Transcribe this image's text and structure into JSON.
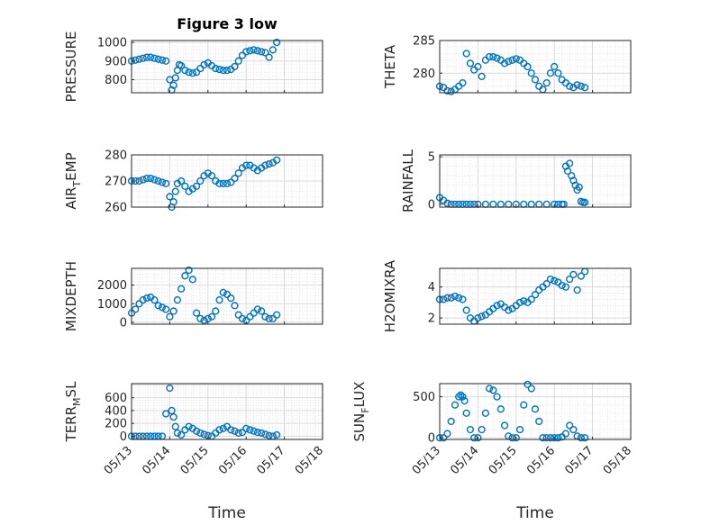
{
  "figure_title": "Figure 3 low",
  "x_label": "Time",
  "x_tick_labels": [
    "05/13",
    "05/14",
    "05/15",
    "05/16",
    "05/17",
    "05/18"
  ],
  "marker_color": "#0072BD",
  "chart_data": [
    {
      "type": "scatter",
      "id": "pressure",
      "ylabel": "PRESSURE",
      "ylabel_sub": "",
      "ylabel_suffix": "",
      "ylim": [
        730,
        1010
      ],
      "yticks": [
        800,
        900,
        1000
      ],
      "yticklabels": [
        "800",
        "900",
        "1000"
      ],
      "xlim": [
        0,
        5
      ],
      "grid": true,
      "x": [
        0.0,
        0.1,
        0.2,
        0.3,
        0.4,
        0.5,
        0.6,
        0.7,
        0.8,
        0.9,
        1.0,
        1.05,
        1.1,
        1.15,
        1.2,
        1.25,
        1.3,
        1.4,
        1.5,
        1.6,
        1.7,
        1.8,
        1.9,
        2.0,
        2.1,
        2.2,
        2.3,
        2.4,
        2.5,
        2.6,
        2.7,
        2.8,
        2.9,
        3.0,
        3.1,
        3.2,
        3.3,
        3.4,
        3.5,
        3.6,
        3.7,
        3.8
      ],
      "y": [
        900,
        905,
        910,
        915,
        920,
        920,
        915,
        910,
        905,
        900,
        800,
        745,
        770,
        810,
        850,
        880,
        875,
        850,
        840,
        835,
        840,
        860,
        880,
        890,
        875,
        860,
        855,
        850,
        850,
        855,
        870,
        900,
        930,
        950,
        955,
        960,
        955,
        950,
        945,
        920,
        960,
        1000
      ]
    },
    {
      "type": "scatter",
      "id": "theta",
      "ylabel": "THETA",
      "ylabel_sub": "",
      "ylabel_suffix": "",
      "ylim": [
        277,
        285
      ],
      "yticks": [
        280,
        285
      ],
      "yticklabels": [
        "280",
        "285"
      ],
      "xlim": [
        0,
        5
      ],
      "grid": true,
      "x": [
        0.0,
        0.1,
        0.2,
        0.3,
        0.4,
        0.5,
        0.6,
        0.7,
        0.8,
        0.9,
        1.0,
        1.1,
        1.2,
        1.3,
        1.4,
        1.5,
        1.6,
        1.7,
        1.8,
        1.9,
        2.0,
        2.1,
        2.2,
        2.3,
        2.4,
        2.5,
        2.6,
        2.7,
        2.8,
        2.9,
        3.0,
        3.1,
        3.2,
        3.3,
        3.4,
        3.5,
        3.6,
        3.7,
        3.8
      ],
      "y": [
        278.0,
        277.8,
        277.3,
        277.2,
        277.5,
        278.0,
        278.5,
        283.0,
        281.5,
        280.5,
        281.0,
        279.5,
        282.0,
        282.5,
        282.5,
        282.3,
        282.0,
        281.5,
        281.8,
        282.0,
        282.2,
        282.0,
        281.5,
        281.0,
        280.0,
        279.0,
        278.0,
        277.5,
        278.5,
        280.0,
        281.0,
        280.0,
        279.0,
        278.5,
        278.0,
        277.8,
        278.2,
        278.0,
        277.8
      ]
    },
    {
      "type": "scatter",
      "id": "air_temp",
      "ylabel": "AIR",
      "ylabel_sub": "T",
      "ylabel_suffix": "EMP",
      "ylim": [
        260,
        280
      ],
      "yticks": [
        260,
        270,
        280
      ],
      "yticklabels": [
        "260",
        "270",
        "280"
      ],
      "xlim": [
        0,
        5
      ],
      "grid": true,
      "x": [
        0.0,
        0.1,
        0.2,
        0.3,
        0.4,
        0.5,
        0.6,
        0.7,
        0.8,
        0.9,
        1.0,
        1.05,
        1.1,
        1.15,
        1.2,
        1.3,
        1.4,
        1.5,
        1.6,
        1.7,
        1.8,
        1.9,
        2.0,
        2.1,
        2.2,
        2.3,
        2.4,
        2.5,
        2.6,
        2.7,
        2.8,
        2.9,
        3.0,
        3.1,
        3.2,
        3.3,
        3.4,
        3.5,
        3.6,
        3.7,
        3.8
      ],
      "y": [
        270,
        270,
        270,
        270.5,
        271,
        271,
        270.5,
        270,
        269.5,
        269,
        264,
        260,
        262,
        266,
        269,
        270,
        268,
        266,
        267,
        268,
        270,
        272,
        273,
        272,
        270,
        269,
        269,
        269,
        269.5,
        271,
        273,
        275,
        276,
        276,
        275,
        274,
        275,
        276,
        276.5,
        277,
        278
      ]
    },
    {
      "type": "scatter",
      "id": "rainfall",
      "ylabel": "RAINFALL",
      "ylabel_sub": "",
      "ylabel_suffix": "",
      "ylim": [
        -0.3,
        5.2
      ],
      "yticks": [
        0,
        5
      ],
      "yticklabels": [
        "0",
        "5"
      ],
      "xlim": [
        0,
        5
      ],
      "grid": true,
      "x": [
        0.0,
        0.1,
        0.2,
        0.3,
        0.4,
        0.5,
        0.6,
        0.7,
        0.8,
        0.9,
        1.0,
        1.2,
        1.4,
        1.6,
        1.8,
        2.0,
        2.2,
        2.4,
        2.6,
        2.8,
        3.0,
        3.1,
        3.2,
        3.25,
        3.3,
        3.35,
        3.4,
        3.45,
        3.5,
        3.55,
        3.6,
        3.65,
        3.7,
        3.75,
        3.8
      ],
      "y": [
        0.7,
        0.4,
        0.1,
        0,
        0,
        0,
        0,
        0,
        0,
        0,
        0,
        0,
        0,
        0,
        0,
        0,
        0,
        0,
        0,
        0,
        0,
        0,
        0,
        0,
        4.0,
        3.5,
        4.3,
        3.0,
        2.5,
        2.0,
        1.5,
        1.8,
        0.3,
        0.2,
        0.2
      ]
    },
    {
      "type": "scatter",
      "id": "mixdepth",
      "ylabel": "MIXDEPTH",
      "ylabel_sub": "",
      "ylabel_suffix": "",
      "ylim": [
        -100,
        2900
      ],
      "yticks": [
        0,
        1000,
        2000
      ],
      "yticklabels": [
        "0",
        "1000",
        "2000"
      ],
      "xlim": [
        0,
        5
      ],
      "grid": true,
      "x": [
        0.0,
        0.1,
        0.2,
        0.3,
        0.4,
        0.5,
        0.6,
        0.7,
        0.8,
        0.9,
        1.0,
        1.1,
        1.2,
        1.3,
        1.4,
        1.5,
        1.6,
        1.7,
        1.8,
        1.9,
        2.0,
        2.1,
        2.2,
        2.3,
        2.4,
        2.5,
        2.6,
        2.7,
        2.8,
        2.9,
        3.0,
        3.1,
        3.2,
        3.3,
        3.4,
        3.5,
        3.6,
        3.7,
        3.8
      ],
      "y": [
        500,
        700,
        1000,
        1200,
        1300,
        1350,
        1200,
        900,
        800,
        700,
        300,
        600,
        1200,
        1800,
        2500,
        2800,
        2300,
        500,
        200,
        100,
        200,
        300,
        600,
        1200,
        1600,
        1500,
        1300,
        900,
        400,
        200,
        100,
        300,
        500,
        700,
        600,
        300,
        200,
        200,
        400
      ]
    },
    {
      "type": "scatter",
      "id": "h2omixra",
      "ylabel": "H2OMIXRA",
      "ylabel_sub": "",
      "ylabel_suffix": "",
      "ylim": [
        1.6,
        5.2
      ],
      "yticks": [
        2,
        4
      ],
      "yticklabels": [
        "2",
        "4"
      ],
      "xlim": [
        0,
        5
      ],
      "grid": true,
      "x": [
        0.0,
        0.1,
        0.2,
        0.3,
        0.4,
        0.5,
        0.6,
        0.7,
        0.8,
        0.9,
        1.0,
        1.1,
        1.2,
        1.3,
        1.4,
        1.5,
        1.6,
        1.7,
        1.8,
        1.9,
        2.0,
        2.1,
        2.2,
        2.3,
        2.4,
        2.5,
        2.6,
        2.7,
        2.8,
        2.9,
        3.0,
        3.1,
        3.2,
        3.3,
        3.4,
        3.5,
        3.6,
        3.7,
        3.8
      ],
      "y": [
        3.2,
        3.2,
        3.3,
        3.3,
        3.4,
        3.3,
        3.2,
        2.5,
        2.0,
        1.8,
        2.0,
        2.1,
        2.2,
        2.4,
        2.6,
        2.8,
        2.9,
        2.7,
        2.5,
        2.6,
        2.8,
        3.0,
        3.1,
        3.0,
        3.2,
        3.5,
        3.8,
        4.0,
        4.2,
        4.5,
        4.4,
        4.3,
        4.1,
        4.0,
        4.5,
        4.8,
        3.8,
        4.7,
        5.0
      ]
    },
    {
      "type": "scatter",
      "id": "terr_msl",
      "ylabel": "TERR",
      "ylabel_sub": "M",
      "ylabel_suffix": "SL",
      "ylim": [
        -50,
        820
      ],
      "yticks": [
        0,
        200,
        400,
        600
      ],
      "yticklabels": [
        "0",
        "200",
        "400",
        "600"
      ],
      "xlim": [
        0,
        5
      ],
      "grid": true,
      "x": [
        0.0,
        0.1,
        0.2,
        0.3,
        0.4,
        0.5,
        0.6,
        0.7,
        0.8,
        0.9,
        1.0,
        1.05,
        1.1,
        1.15,
        1.2,
        1.3,
        1.4,
        1.5,
        1.6,
        1.7,
        1.8,
        1.9,
        2.0,
        2.1,
        2.2,
        2.3,
        2.4,
        2.5,
        2.6,
        2.7,
        2.8,
        2.9,
        3.0,
        3.1,
        3.2,
        3.3,
        3.4,
        3.5,
        3.6,
        3.7,
        3.8
      ],
      "y": [
        0,
        0,
        0,
        0,
        0,
        0,
        0,
        0,
        0,
        350,
        750,
        400,
        300,
        150,
        50,
        20,
        100,
        150,
        120,
        80,
        50,
        30,
        10,
        0,
        50,
        100,
        120,
        150,
        100,
        80,
        50,
        60,
        120,
        100,
        80,
        60,
        50,
        30,
        10,
        0,
        20
      ]
    },
    {
      "type": "scatter",
      "id": "sun_flux",
      "ylabel": "SUN",
      "ylabel_sub": "F",
      "ylabel_suffix": "LUX",
      "ylim": [
        -20,
        660
      ],
      "yticks": [
        0,
        500
      ],
      "yticklabels": [
        "0",
        "500"
      ],
      "xlim": [
        0,
        5
      ],
      "grid": true,
      "x": [
        0.0,
        0.1,
        0.2,
        0.3,
        0.4,
        0.5,
        0.55,
        0.6,
        0.65,
        0.7,
        0.8,
        0.9,
        1.0,
        1.1,
        1.2,
        1.3,
        1.4,
        1.5,
        1.6,
        1.7,
        1.8,
        1.9,
        2.0,
        2.1,
        2.2,
        2.3,
        2.4,
        2.5,
        2.6,
        2.7,
        2.8,
        2.9,
        3.0,
        3.1,
        3.2,
        3.3,
        3.4,
        3.5,
        3.6,
        3.7,
        3.8
      ],
      "y": [
        0,
        0,
        50,
        200,
        400,
        500,
        520,
        500,
        450,
        300,
        100,
        0,
        0,
        100,
        300,
        600,
        580,
        500,
        350,
        150,
        20,
        0,
        0,
        100,
        400,
        650,
        600,
        350,
        200,
        0,
        0,
        0,
        0,
        0,
        10,
        50,
        150,
        100,
        20,
        0,
        0
      ]
    }
  ]
}
